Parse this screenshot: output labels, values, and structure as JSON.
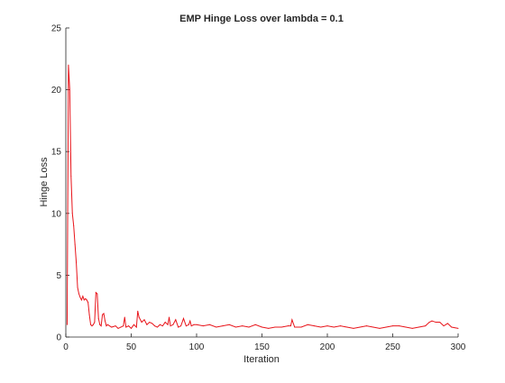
{
  "chart_data": {
    "type": "line",
    "title": "EMP Hinge Loss over lambda = 0.1",
    "xlabel": "Iteration",
    "ylabel": "Hinge Loss",
    "xlim": [
      0,
      300
    ],
    "ylim": [
      0,
      25
    ],
    "xticks": [
      0,
      50,
      100,
      150,
      200,
      250,
      300
    ],
    "yticks": [
      0,
      5,
      10,
      15,
      20,
      25
    ],
    "grid": false,
    "legend": null,
    "colors": {
      "line": "#e8141a",
      "axis": "#262626"
    },
    "series": [
      {
        "x": [
          1,
          2,
          3,
          4,
          5,
          6,
          7,
          8,
          9,
          10,
          11,
          12,
          13,
          14,
          15,
          16,
          17,
          18,
          19,
          20,
          21,
          22,
          23,
          24,
          25,
          26,
          27,
          28,
          29,
          30,
          31,
          32,
          35,
          38,
          40,
          42,
          44,
          45,
          46,
          48,
          50,
          52,
          54,
          55,
          56,
          58,
          60,
          62,
          64,
          66,
          68,
          70,
          72,
          74,
          76,
          78,
          79,
          80,
          82,
          84,
          86,
          88,
          90,
          92,
          94,
          95,
          96,
          98,
          100,
          105,
          110,
          115,
          120,
          125,
          130,
          135,
          140,
          145,
          150,
          155,
          160,
          165,
          170,
          172,
          173,
          175,
          180,
          185,
          190,
          195,
          200,
          205,
          210,
          215,
          220,
          225,
          230,
          235,
          240,
          245,
          250,
          255,
          260,
          265,
          270,
          275,
          278,
          280,
          283,
          286,
          289,
          292,
          295,
          300
        ],
        "y": [
          1.0,
          22.0,
          20.0,
          13.0,
          10.0,
          9.0,
          7.5,
          6.0,
          4.0,
          3.5,
          3.2,
          3.0,
          3.3,
          3.0,
          3.1,
          3.0,
          2.8,
          1.8,
          1.0,
          0.9,
          1.0,
          1.2,
          3.6,
          3.5,
          1.5,
          1.0,
          0.9,
          1.8,
          1.9,
          1.3,
          0.9,
          1.0,
          0.8,
          0.9,
          0.7,
          0.8,
          0.9,
          1.6,
          0.8,
          0.9,
          0.7,
          1.0,
          0.8,
          2.1,
          1.6,
          1.2,
          1.4,
          1.0,
          1.2,
          1.1,
          0.9,
          0.8,
          1.0,
          0.9,
          1.2,
          1.0,
          1.6,
          0.9,
          1.0,
          1.4,
          0.8,
          0.9,
          1.5,
          0.9,
          1.0,
          1.3,
          0.9,
          1.0,
          1.0,
          0.9,
          1.0,
          0.8,
          0.9,
          1.0,
          0.8,
          0.9,
          0.8,
          1.0,
          0.8,
          0.7,
          0.8,
          0.8,
          0.9,
          0.9,
          1.4,
          0.8,
          0.8,
          1.0,
          0.9,
          0.8,
          0.9,
          0.8,
          0.9,
          0.8,
          0.7,
          0.8,
          0.9,
          0.8,
          0.7,
          0.8,
          0.9,
          0.9,
          0.8,
          0.7,
          0.8,
          0.9,
          1.2,
          1.3,
          1.2,
          1.2,
          0.9,
          1.1,
          0.8,
          0.7
        ]
      }
    ]
  }
}
